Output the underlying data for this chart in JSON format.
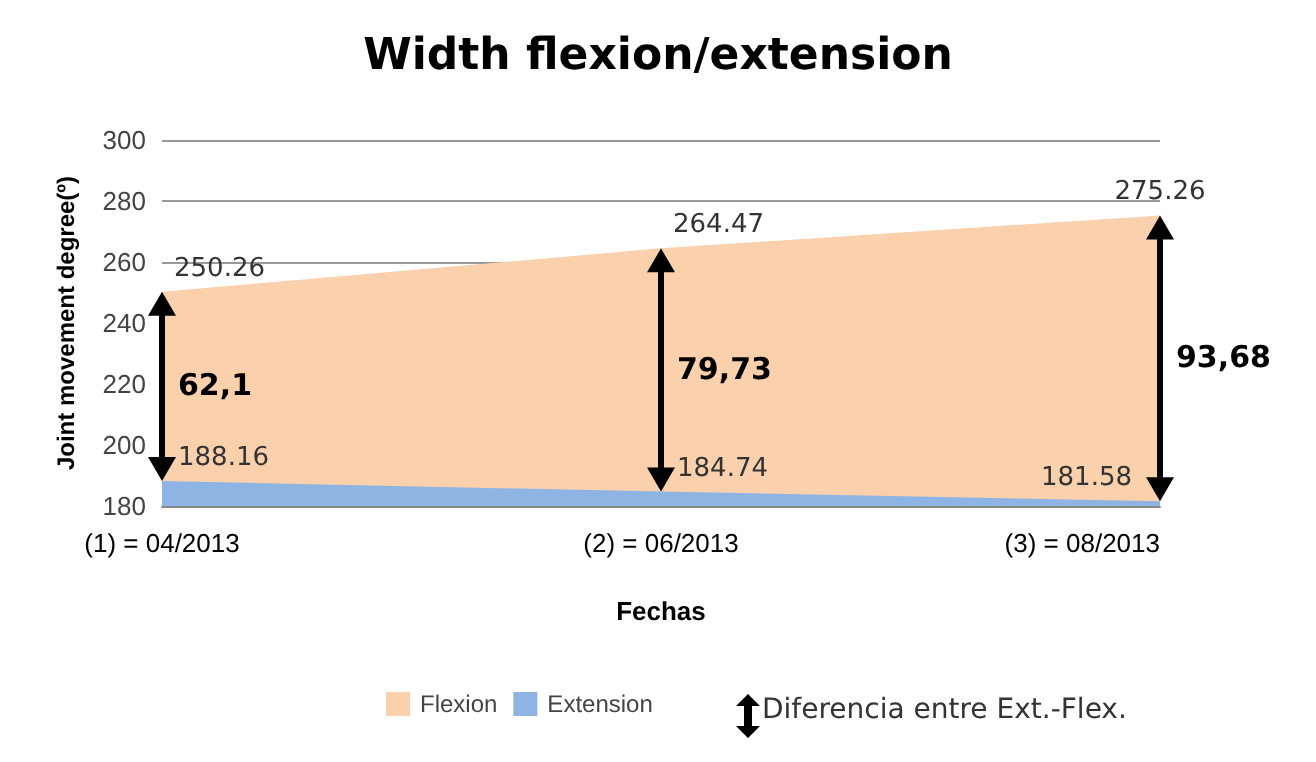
{
  "chart_data": {
    "type": "area",
    "title": "Width flexion/extension",
    "xlabel": "Fechas",
    "ylabel": "Joint movement degree(º)",
    "categories": [
      "(1) = 04/2013",
      "(2) = 06/2013",
      "(3) = 08/2013"
    ],
    "series": [
      {
        "name": "Flexion",
        "color": "#fad0ad",
        "values": [
          250.26,
          264.47,
          275.26
        ]
      },
      {
        "name": "Extension",
        "color": "#8eb4e3",
        "values": [
          188.16,
          184.74,
          181.58
        ]
      }
    ],
    "ylim": [
      180,
      300
    ],
    "yticks": [
      180,
      200,
      220,
      240,
      260,
      280,
      300
    ],
    "grid": "y",
    "legend": "bottom",
    "data_labels": true,
    "marker": "none",
    "annotations": [
      "62,1",
      "79,73",
      "93,68",
      "Diferencia entre Ext.-Flex."
    ]
  }
}
